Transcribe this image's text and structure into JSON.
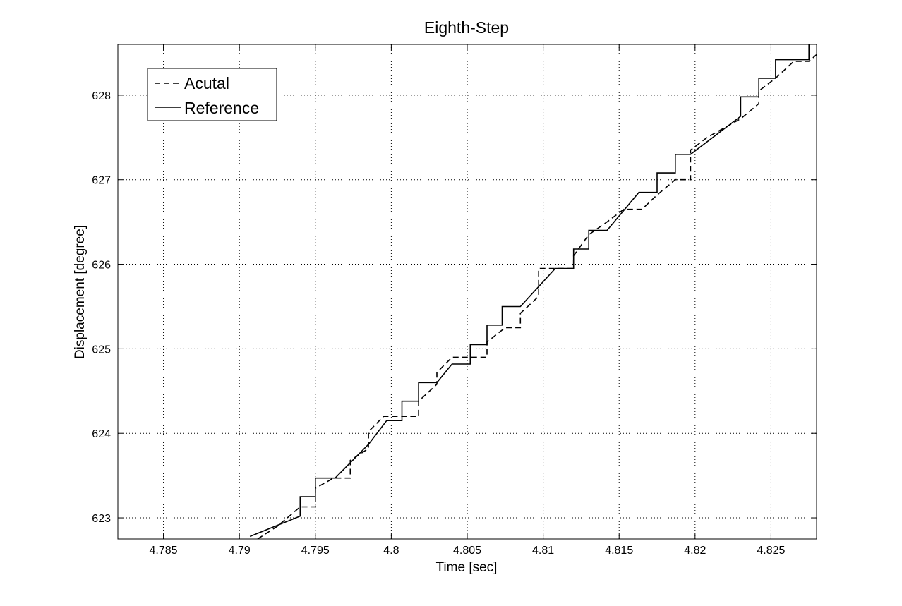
{
  "chart_data": {
    "type": "line",
    "title": "Eighth-Step",
    "xlabel": "Time [sec]",
    "ylabel": "Displacement [degree]",
    "xlim": [
      4.782,
      4.828
    ],
    "ylim": [
      622.75,
      628.6
    ],
    "xticks": [
      4.785,
      4.79,
      4.795,
      4.8,
      4.805,
      4.81,
      4.815,
      4.82,
      4.825
    ],
    "xtick_labels": [
      "4.785",
      "4.79",
      "4.795",
      "4.8",
      "4.805",
      "4.81",
      "4.815",
      "4.82",
      "4.825"
    ],
    "yticks": [
      623,
      624,
      625,
      626,
      627,
      628
    ],
    "ytick_labels": [
      "623",
      "624",
      "625",
      "626",
      "627",
      "628"
    ],
    "grid": true,
    "legend_position": "top-left",
    "series": [
      {
        "name": "Acutal",
        "style": "dashed",
        "color": "#000000",
        "x": [
          4.7912,
          4.7925,
          4.794,
          4.795,
          4.795,
          4.7962,
          4.7973,
          4.7973,
          4.7985,
          4.7985,
          4.7995,
          4.8008,
          4.8018,
          4.8018,
          4.803,
          4.803,
          4.804,
          4.8052,
          4.8063,
          4.8063,
          4.8075,
          4.8085,
          4.8085,
          4.8097,
          4.8097,
          4.8108,
          4.812,
          4.812,
          4.813,
          4.8142,
          4.8153,
          4.8165,
          4.8175,
          4.8187,
          4.8197,
          4.8197,
          4.8208,
          4.822,
          4.823,
          4.8242,
          4.8242,
          4.8253,
          4.8265,
          4.8275,
          4.828
        ],
        "y": [
          622.75,
          622.9,
          623.13,
          623.13,
          623.35,
          623.47,
          623.47,
          623.68,
          623.82,
          624.02,
          624.2,
          624.2,
          624.2,
          624.38,
          624.58,
          624.72,
          624.9,
          624.9,
          624.9,
          625.08,
          625.25,
          625.25,
          625.42,
          625.62,
          625.95,
          625.95,
          625.95,
          626.1,
          626.35,
          626.5,
          626.65,
          626.65,
          626.82,
          627.0,
          627.0,
          627.35,
          627.5,
          627.62,
          627.72,
          627.9,
          628.05,
          628.2,
          628.4,
          628.4,
          628.48
        ]
      },
      {
        "name": "Reference",
        "style": "solid",
        "color": "#000000",
        "x": [
          4.7907,
          4.794,
          4.794,
          4.795,
          4.795,
          4.7963,
          4.7985,
          4.7997,
          4.8007,
          4.8007,
          4.8018,
          4.8018,
          4.803,
          4.804,
          4.8052,
          4.8052,
          4.8063,
          4.8063,
          4.8073,
          4.8073,
          4.8085,
          4.8108,
          4.812,
          4.812,
          4.813,
          4.813,
          4.8142,
          4.8163,
          4.8175,
          4.8175,
          4.8187,
          4.8187,
          4.8197,
          4.8197,
          4.823,
          4.823,
          4.8242,
          4.8242,
          4.8253,
          4.8253,
          4.8275,
          4.8275
        ],
        "y": [
          622.78,
          623.02,
          623.25,
          623.25,
          623.47,
          623.47,
          623.87,
          624.15,
          624.15,
          624.38,
          624.38,
          624.6,
          624.6,
          624.82,
          624.82,
          625.05,
          625.05,
          625.28,
          625.28,
          625.5,
          625.5,
          625.95,
          625.95,
          626.18,
          626.18,
          626.4,
          626.4,
          626.85,
          626.85,
          627.08,
          627.08,
          627.3,
          627.3,
          627.3,
          627.75,
          627.98,
          627.98,
          628.2,
          628.2,
          628.42,
          628.42,
          628.6
        ]
      }
    ]
  }
}
